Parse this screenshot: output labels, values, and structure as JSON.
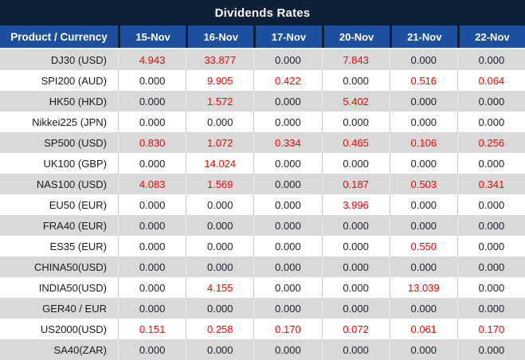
{
  "title": "Dividends Rates",
  "colors": {
    "title_bar_bg": "#0d2038",
    "header_bg": "#1d4f9f",
    "header_text": "#ffffff",
    "row_alt_bg": "#d9d9d9",
    "row_bg": "#ffffff",
    "value_zero": "#1f1f2e",
    "value_nonzero": "#ff0000",
    "label_text": "#1a1a1a"
  },
  "chart_data": {
    "type": "table",
    "title": "Dividends Rates",
    "label_column": "Product / Currency",
    "columns": [
      "15-Nov",
      "16-Nov",
      "17-Nov",
      "20-Nov",
      "21-Nov",
      "22-Nov"
    ],
    "rows": [
      {
        "product": "DJ30 (USD)",
        "values": [
          "4.943",
          "33.877",
          "0.000",
          "7.843",
          "0.000",
          "0.000"
        ]
      },
      {
        "product": "SPI200 (AUD)",
        "values": [
          "0.000",
          "9.905",
          "0.422",
          "0.000",
          "0.516",
          "0.064"
        ]
      },
      {
        "product": "HK50 (HKD)",
        "values": [
          "0.000",
          "1.572",
          "0.000",
          "5.402",
          "0.000",
          "0.000"
        ]
      },
      {
        "product": "Nikkei225 (JPN)",
        "values": [
          "0.000",
          "0.000",
          "0.000",
          "0.000",
          "0.000",
          "0.000"
        ]
      },
      {
        "product": "SP500 (USD)",
        "values": [
          "0.830",
          "1.072",
          "0.334",
          "0.465",
          "0.106",
          "0.256"
        ]
      },
      {
        "product": "UK100 (GBP)",
        "values": [
          "0.000",
          "14.024",
          "0.000",
          "0.000",
          "0.000",
          "0.000"
        ]
      },
      {
        "product": "NAS100 (USD)",
        "values": [
          "4.083",
          "1.569",
          "0.000",
          "0.187",
          "0.503",
          "0.341"
        ]
      },
      {
        "product": "EU50 (EUR)",
        "values": [
          "0.000",
          "0.000",
          "0.000",
          "3.996",
          "0.000",
          "0.000"
        ]
      },
      {
        "product": "FRA40 (EUR)",
        "values": [
          "0.000",
          "0.000",
          "0.000",
          "0.000",
          "0.000",
          "0.000"
        ]
      },
      {
        "product": "ES35 (EUR)",
        "values": [
          "0.000",
          "0.000",
          "0.000",
          "0.000",
          "0.550",
          "0.000"
        ]
      },
      {
        "product": "CHINA50(USD)",
        "values": [
          "0.000",
          "0.000",
          "0.000",
          "0.000",
          "0.000",
          "0.000"
        ]
      },
      {
        "product": "INDIA50(USD)",
        "values": [
          "0.000",
          "4.155",
          "0.000",
          "0.000",
          "13.039",
          "0.000"
        ]
      },
      {
        "product": "GER40 / EUR",
        "values": [
          "0.000",
          "0.000",
          "0.000",
          "0.000",
          "0.000",
          "0.000"
        ]
      },
      {
        "product": "US2000(USD)",
        "values": [
          "0.151",
          "0.258",
          "0.170",
          "0.072",
          "0.061",
          "0.170"
        ]
      },
      {
        "product": "SA40(ZAR)",
        "values": [
          "0.000",
          "0.000",
          "0.000",
          "0.000",
          "0.000",
          "0.000"
        ]
      }
    ]
  }
}
